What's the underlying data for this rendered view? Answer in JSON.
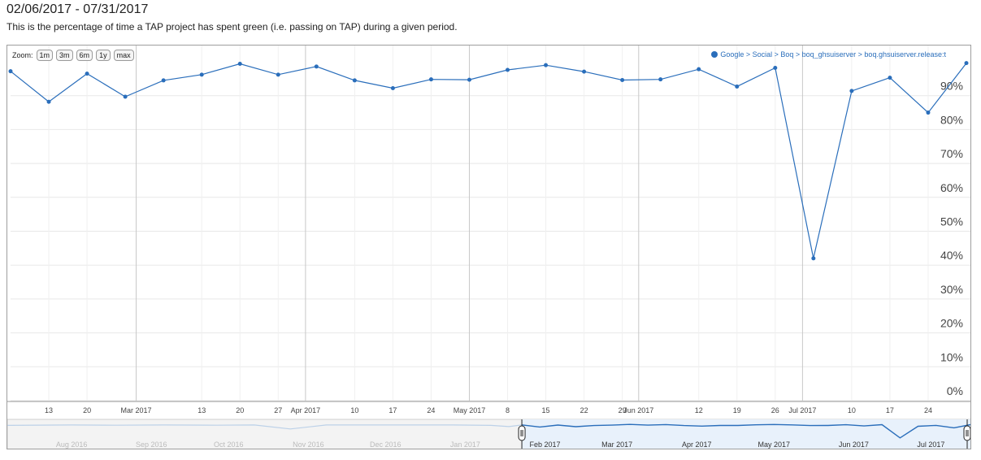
{
  "header": {
    "title": "02/06/2017 - 07/31/2017",
    "subtitle": "This is the percentage of time a TAP project has spent green (i.e. passing on TAP) during a given period."
  },
  "zoom": {
    "label": "Zoom:",
    "buttons": [
      "1m",
      "3m",
      "6m",
      "1y",
      "max"
    ]
  },
  "colors": {
    "series": "#2a6ebb",
    "grid": "#e8e8e8",
    "month_line": "#c8c8c8",
    "navigator_fill": "#e8f1fb"
  },
  "chart_data": {
    "type": "line",
    "title": "",
    "xlabel": "",
    "ylabel": "",
    "ylim": [
      0,
      100
    ],
    "yticks": [
      "0%",
      "10%",
      "20%",
      "30%",
      "40%",
      "50%",
      "60%",
      "70%",
      "80%",
      "90%"
    ],
    "x_ticks": [
      {
        "date": "2017-02-13",
        "label": "13"
      },
      {
        "date": "2017-02-20",
        "label": "20"
      },
      {
        "date": "2017-03-01",
        "label": "Mar 2017"
      },
      {
        "date": "2017-03-13",
        "label": "13"
      },
      {
        "date": "2017-03-20",
        "label": "20"
      },
      {
        "date": "2017-03-27",
        "label": "27"
      },
      {
        "date": "2017-04-01",
        "label": "Apr 2017"
      },
      {
        "date": "2017-04-10",
        "label": "10"
      },
      {
        "date": "2017-04-17",
        "label": "17"
      },
      {
        "date": "2017-04-24",
        "label": "24"
      },
      {
        "date": "2017-05-01",
        "label": "May 2017"
      },
      {
        "date": "2017-05-08",
        "label": "8"
      },
      {
        "date": "2017-05-15",
        "label": "15"
      },
      {
        "date": "2017-05-22",
        "label": "22"
      },
      {
        "date": "2017-05-29",
        "label": "29"
      },
      {
        "date": "2017-06-01",
        "label": "Jun 2017"
      },
      {
        "date": "2017-06-12",
        "label": "12"
      },
      {
        "date": "2017-06-19",
        "label": "19"
      },
      {
        "date": "2017-06-26",
        "label": "26"
      },
      {
        "date": "2017-07-01",
        "label": "Jul 2017"
      },
      {
        "date": "2017-07-10",
        "label": "10"
      },
      {
        "date": "2017-07-17",
        "label": "17"
      },
      {
        "date": "2017-07-24",
        "label": "24"
      }
    ],
    "x_range": [
      "2017-02-06",
      "2017-07-31"
    ],
    "series": [
      {
        "name": "Google > Social > Boq > boq_ghsuiserver > boq.ghsuiserver.release:t",
        "points": [
          {
            "x": "2017-02-06",
            "y": 97.2
          },
          {
            "x": "2017-02-13",
            "y": 88.2
          },
          {
            "x": "2017-02-20",
            "y": 96.5
          },
          {
            "x": "2017-02-27",
            "y": 89.7
          },
          {
            "x": "2017-03-06",
            "y": 94.5
          },
          {
            "x": "2017-03-13",
            "y": 96.2
          },
          {
            "x": "2017-03-20",
            "y": 99.4
          },
          {
            "x": "2017-03-27",
            "y": 96.2
          },
          {
            "x": "2017-04-03",
            "y": 98.6
          },
          {
            "x": "2017-04-10",
            "y": 94.5
          },
          {
            "x": "2017-04-17",
            "y": 92.2
          },
          {
            "x": "2017-04-24",
            "y": 94.8
          },
          {
            "x": "2017-05-01",
            "y": 94.7
          },
          {
            "x": "2017-05-08",
            "y": 97.6
          },
          {
            "x": "2017-05-15",
            "y": 99.0
          },
          {
            "x": "2017-05-22",
            "y": 97.1
          },
          {
            "x": "2017-05-29",
            "y": 94.6
          },
          {
            "x": "2017-06-05",
            "y": 94.8
          },
          {
            "x": "2017-06-12",
            "y": 97.8
          },
          {
            "x": "2017-06-19",
            "y": 92.7
          },
          {
            "x": "2017-06-26",
            "y": 98.2
          },
          {
            "x": "2017-07-03",
            "y": 42.0
          },
          {
            "x": "2017-07-10",
            "y": 91.4
          },
          {
            "x": "2017-07-17",
            "y": 95.3
          },
          {
            "x": "2017-07-24",
            "y": 85.0
          },
          {
            "x": "2017-07-31",
            "y": 99.6
          }
        ]
      }
    ],
    "navigator": {
      "labels": [
        {
          "date": "2016-08-15",
          "label": "Aug 2016"
        },
        {
          "date": "2016-09-15",
          "label": "Sep 2016"
        },
        {
          "date": "2016-10-15",
          "label": "Oct 2016"
        },
        {
          "date": "2016-11-15",
          "label": "Nov 2016"
        },
        {
          "date": "2016-12-15",
          "label": "Dec 2016"
        },
        {
          "date": "2017-01-15",
          "label": "Jan 2017"
        },
        {
          "date": "2017-02-15",
          "label": "Feb 2017"
        },
        {
          "date": "2017-03-15",
          "label": "Mar 2017"
        },
        {
          "date": "2017-04-15",
          "label": "Apr 2017"
        },
        {
          "date": "2017-05-15",
          "label": "May 2017"
        },
        {
          "date": "2017-06-15",
          "label": "Jun 2017"
        },
        {
          "date": "2017-07-15",
          "label": "Jul 2017"
        }
      ],
      "range": [
        "2016-07-21",
        "2017-07-31"
      ],
      "selection": [
        "2017-02-06",
        "2017-07-31"
      ],
      "history": [
        {
          "x": "2016-07-21",
          "y": 95
        },
        {
          "x": "2016-08-15",
          "y": 97
        },
        {
          "x": "2016-09-01",
          "y": 96
        },
        {
          "x": "2016-09-20",
          "y": 97
        },
        {
          "x": "2016-10-10",
          "y": 96
        },
        {
          "x": "2016-10-25",
          "y": 97
        },
        {
          "x": "2016-11-08",
          "y": 80
        },
        {
          "x": "2016-11-22",
          "y": 97
        },
        {
          "x": "2016-12-10",
          "y": 97
        },
        {
          "x": "2016-12-25",
          "y": 97
        },
        {
          "x": "2017-01-10",
          "y": 97
        },
        {
          "x": "2017-01-25",
          "y": 95
        },
        {
          "x": "2017-02-01",
          "y": 90
        },
        {
          "x": "2017-02-06",
          "y": 97.2
        }
      ]
    }
  }
}
